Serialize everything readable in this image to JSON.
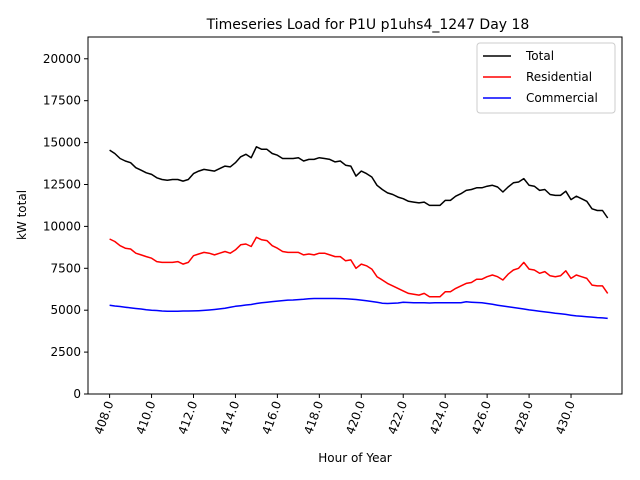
{
  "chart_data": {
    "type": "line",
    "title": "Timeseries Load for P1U p1uhs4_1247  Day 18",
    "xlabel": "Hour of Year",
    "ylabel": "kW total",
    "xlim": [
      406.97,
      432.43
    ],
    "ylim": [
      0,
      21300
    ],
    "xticks": [
      408,
      410,
      412,
      414,
      416,
      418,
      420,
      422,
      424,
      426,
      428,
      430
    ],
    "xtick_labels": [
      "408.0",
      "410.0",
      "412.0",
      "414.0",
      "416.0",
      "418.0",
      "420.0",
      "422.0",
      "424.0",
      "426.0",
      "428.0",
      "430.0"
    ],
    "yticks": [
      0,
      2500,
      5000,
      7500,
      10000,
      12500,
      15000,
      17500,
      20000
    ],
    "ytick_labels": [
      "0",
      "2500",
      "5000",
      "7500",
      "10000",
      "12500",
      "15000",
      "17500",
      "20000"
    ],
    "grid": false,
    "legend_position": "top-right",
    "x": [
      408.0,
      408.25,
      408.5,
      408.75,
      409.0,
      409.25,
      409.5,
      409.75,
      410.0,
      410.25,
      410.5,
      410.75,
      411.0,
      411.25,
      411.5,
      411.75,
      412.0,
      412.25,
      412.5,
      412.75,
      413.0,
      413.25,
      413.5,
      413.75,
      414.0,
      414.25,
      414.5,
      414.75,
      415.0,
      415.25,
      415.5,
      415.75,
      416.0,
      416.25,
      416.5,
      416.75,
      417.0,
      417.25,
      417.5,
      417.75,
      418.0,
      418.25,
      418.5,
      418.75,
      419.0,
      419.25,
      419.5,
      419.75,
      420.0,
      420.25,
      420.5,
      420.75,
      421.0,
      421.25,
      421.5,
      421.75,
      422.0,
      422.25,
      422.5,
      422.75,
      423.0,
      423.25,
      423.5,
      423.75,
      424.0,
      424.25,
      424.5,
      424.75,
      425.0,
      425.25,
      425.5,
      425.75,
      426.0,
      426.25,
      426.5,
      426.75,
      427.0,
      427.25,
      427.5,
      427.75,
      428.0,
      428.25,
      428.5,
      428.75,
      429.0,
      429.25,
      429.5,
      429.75,
      430.0,
      430.25,
      430.5,
      430.75,
      431.0,
      431.25,
      431.5,
      431.75
    ],
    "series": [
      {
        "name": "Total",
        "color": "#000000",
        "values": [
          14550,
          14350,
          14050,
          13900,
          13800,
          13500,
          13350,
          13200,
          13100,
          12900,
          12800,
          12750,
          12800,
          12800,
          12700,
          12800,
          13150,
          13300,
          13400,
          13350,
          13300,
          13450,
          13600,
          13550,
          13800,
          14150,
          14300,
          14100,
          14750,
          14600,
          14600,
          14350,
          14250,
          14050,
          14050,
          14050,
          14100,
          13900,
          14000,
          14000,
          14100,
          14050,
          14000,
          13850,
          13900,
          13650,
          13600,
          13000,
          13300,
          13150,
          12950,
          12450,
          12200,
          12000,
          11900,
          11750,
          11650,
          11500,
          11450,
          11400,
          11450,
          11250,
          11250,
          11250,
          11550,
          11550,
          11800,
          11950,
          12150,
          12200,
          12300,
          12300,
          12400,
          12450,
          12350,
          12050,
          12350,
          12600,
          12650,
          12850,
          12450,
          12400,
          12150,
          12200,
          11900,
          11850,
          11850,
          12100,
          11600,
          11800,
          11650,
          11500,
          11050,
          10950,
          10950,
          10500
        ]
      },
      {
        "name": "Residential",
        "color": "#ff0000",
        "values": [
          9250,
          9100,
          8850,
          8700,
          8650,
          8400,
          8300,
          8200,
          8100,
          7900,
          7850,
          7850,
          7850,
          7900,
          7750,
          7850,
          8250,
          8350,
          8450,
          8400,
          8300,
          8400,
          8500,
          8400,
          8600,
          8900,
          8950,
          8800,
          9350,
          9200,
          9150,
          8850,
          8700,
          8500,
          8450,
          8450,
          8450,
          8300,
          8350,
          8300,
          8400,
          8400,
          8300,
          8200,
          8200,
          7950,
          8000,
          7500,
          7750,
          7650,
          7450,
          7000,
          6800,
          6600,
          6450,
          6300,
          6150,
          6000,
          5950,
          5900,
          6000,
          5800,
          5800,
          5800,
          6100,
          6100,
          6300,
          6450,
          6600,
          6650,
          6850,
          6850,
          7000,
          7100,
          7000,
          6800,
          7150,
          7400,
          7500,
          7850,
          7450,
          7400,
          7200,
          7300,
          7050,
          7000,
          7050,
          7350,
          6900,
          7100,
          7000,
          6900,
          6500,
          6450,
          6450,
          6000
        ]
      },
      {
        "name": "Commercial",
        "color": "#0000ff",
        "values": [
          5300,
          5250,
          5220,
          5180,
          5140,
          5100,
          5070,
          5030,
          5000,
          4980,
          4950,
          4940,
          4940,
          4940,
          4950,
          4950,
          4960,
          4970,
          4990,
          5010,
          5040,
          5080,
          5120,
          5170,
          5230,
          5270,
          5310,
          5340,
          5400,
          5450,
          5480,
          5510,
          5540,
          5570,
          5600,
          5610,
          5630,
          5650,
          5680,
          5700,
          5700,
          5700,
          5700,
          5700,
          5690,
          5680,
          5660,
          5640,
          5600,
          5560,
          5520,
          5470,
          5420,
          5400,
          5410,
          5430,
          5470,
          5460,
          5450,
          5440,
          5440,
          5430,
          5440,
          5440,
          5440,
          5450,
          5450,
          5450,
          5500,
          5480,
          5460,
          5440,
          5400,
          5350,
          5300,
          5250,
          5200,
          5160,
          5120,
          5070,
          5020,
          4980,
          4940,
          4900,
          4860,
          4820,
          4790,
          4750,
          4700,
          4660,
          4640,
          4610,
          4590,
          4560,
          4540,
          4510
        ]
      }
    ]
  }
}
